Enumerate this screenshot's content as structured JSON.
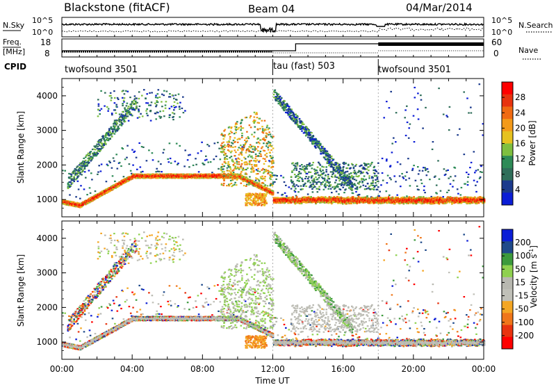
{
  "header": {
    "station": "Blackstone (fitACF)",
    "beam": "Beam 04",
    "date": "04/Mar/2014"
  },
  "top_panels": {
    "nsky_label": "N.Sky",
    "nsky_ticks": [
      "10^5",
      "10^0"
    ],
    "nsearch_label": "N.Search",
    "nsearch_ticks": [
      "10^5",
      "10^0"
    ],
    "freq_label_1": "Freq.",
    "freq_label_2": "[MHz]",
    "freq_ticks": [
      "18",
      "8"
    ],
    "nave_label": "Nave",
    "nave_ticks": [
      "60",
      "0"
    ],
    "cpid_label": "CPID",
    "cpid_segments": [
      {
        "label": "twofsound 3501",
        "start_hour": 0
      },
      {
        "label": "tau (fast) 503",
        "start_hour": 12
      },
      {
        "label": "twofsound 3501",
        "start_hour": 18
      }
    ]
  },
  "colors": {
    "power": [
      "#0b1dd6",
      "#1b3a8c",
      "#2f6e5a",
      "#2e8b57",
      "#7fbf3f",
      "#e6c21f",
      "#f39a1a",
      "#f06a12",
      "#e8330f",
      "#ff0000"
    ],
    "velocity": [
      "#ff0000",
      "#e8330f",
      "#f0761a",
      "#f4a623",
      "#c0c0b8",
      "#b8b8b0",
      "#8fd14f",
      "#3c9a3c",
      "#1f4a8a",
      "#0b1dd6"
    ]
  },
  "chart_data": [
    {
      "type": "heatmap",
      "title": "Power",
      "ylabel": "Slant Range [km]",
      "xlabel": "",
      "x_ticks": [
        "00:00",
        "04:00",
        "08:00",
        "12:00",
        "16:00",
        "20:00",
        "00:00"
      ],
      "y_ticks": [
        1000,
        2000,
        3000,
        4000
      ],
      "ylim": [
        500,
        4500
      ],
      "xlim_hours": [
        0,
        24
      ],
      "colorbar_label": "Power [dB]",
      "colorbar_ticks": [
        "28",
        "24",
        "20",
        "16",
        "12",
        "8",
        "4"
      ],
      "colorbar_range": [
        0,
        30
      ]
    },
    {
      "type": "heatmap",
      "title": "Velocity",
      "ylabel": "Slant Range [km]",
      "xlabel": "Time UT",
      "x_ticks": [
        "00:00",
        "04:00",
        "08:00",
        "12:00",
        "16:00",
        "20:00",
        "00:00"
      ],
      "y_ticks": [
        1000,
        2000,
        3000,
        4000
      ],
      "ylim": [
        500,
        4500
      ],
      "xlim_hours": [
        0,
        24
      ],
      "colorbar_label": "Velocity [m s",
      "colorbar_label_sup": "-1",
      "colorbar_label_end": "]",
      "colorbar_ticks": [
        "200",
        "100",
        "50",
        "15",
        "-15",
        "-50",
        "-100",
        "-200"
      ],
      "colorbar_range": [
        -250,
        250
      ]
    }
  ]
}
